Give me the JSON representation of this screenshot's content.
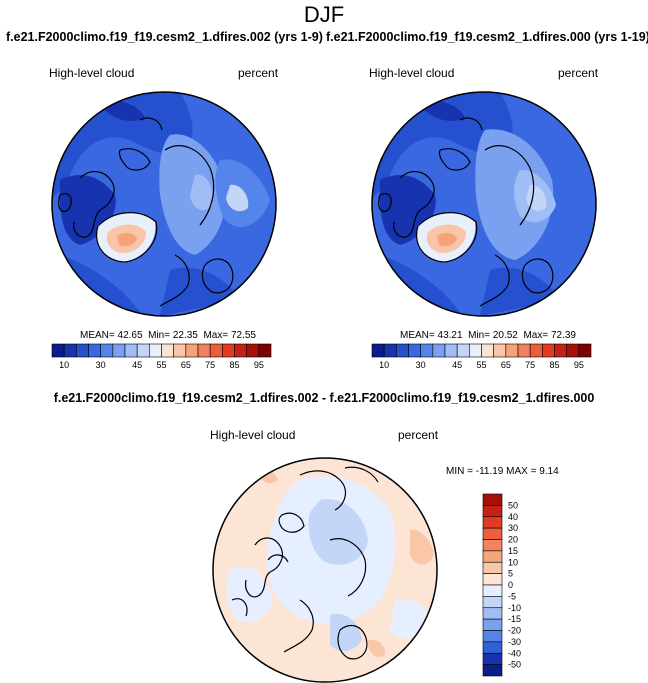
{
  "chart_data": [
    {
      "type": "heatmap",
      "projection": "north-polar-stereographic",
      "title": "DJF",
      "subtitle": "f.e21.F2000climo.f19_f19.cesm2_1.dfires.002 (yrs 1-9)",
      "left_label": "High-level cloud",
      "right_label": "percent",
      "stats": {
        "mean_label": "MEAN=",
        "mean": "42.65",
        "min_label": "Min=",
        "min": "22.35",
        "max_label": "Max=",
        "max": "72.55"
      },
      "colorbar": {
        "orientation": "horizontal",
        "levels": [
          10,
          20,
          25,
          30,
          35,
          40,
          45,
          50,
          55,
          60,
          65,
          70,
          75,
          80,
          85,
          90,
          95
        ],
        "tick_labels": [
          "10",
          "30",
          "45",
          "55",
          "65",
          "75",
          "85",
          "95"
        ],
        "colors": [
          "#0b1c8c",
          "#1833b0",
          "#2550d0",
          "#3a68e0",
          "#5584ea",
          "#7aa0f0",
          "#a0bdf5",
          "#c4d6f8",
          "#e8f0fc",
          "#fbe4d4",
          "#f8c6a6",
          "#f6a37c",
          "#f3805a",
          "#ed5d3c",
          "#e03c25",
          "#c82114",
          "#a70f0b",
          "#7e0000"
        ]
      }
    },
    {
      "type": "heatmap",
      "projection": "north-polar-stereographic",
      "subtitle": "f.e21.F2000climo.f19_f19.cesm2_1.dfires.000 (yrs 1-19)",
      "left_label": "High-level cloud",
      "right_label": "percent",
      "stats": {
        "mean_label": "MEAN=",
        "mean": "43.21",
        "min_label": "Min=",
        "min": "20.52",
        "max_label": "Max=",
        "max": "72.39"
      },
      "colorbar": {
        "orientation": "horizontal",
        "levels": [
          10,
          20,
          25,
          30,
          35,
          40,
          45,
          50,
          55,
          60,
          65,
          70,
          75,
          80,
          85,
          90,
          95
        ],
        "tick_labels": [
          "10",
          "30",
          "45",
          "55",
          "65",
          "75",
          "85",
          "95"
        ],
        "colors": [
          "#0b1c8c",
          "#1833b0",
          "#2550d0",
          "#3a68e0",
          "#5584ea",
          "#7aa0f0",
          "#a0bdf5",
          "#c4d6f8",
          "#e8f0fc",
          "#fbe4d4",
          "#f8c6a6",
          "#f6a37c",
          "#f3805a",
          "#ed5d3c",
          "#e03c25",
          "#c82114",
          "#a70f0b",
          "#7e0000"
        ]
      }
    },
    {
      "type": "heatmap",
      "projection": "north-polar-stereographic",
      "title": "f.e21.F2000climo.f19_f19.cesm2_1.dfires.002 - f.e21.F2000climo.f19_f19.cesm2_1.dfires.000",
      "left_label": "High-level cloud",
      "right_label": "percent",
      "stats": {
        "min_label": "MIN =",
        "min": "-11.19",
        "max_label": "MAX =",
        "max": "9.14"
      },
      "colorbar": {
        "orientation": "vertical",
        "levels": [
          -50,
          -40,
          -30,
          -20,
          -15,
          -10,
          -5,
          0,
          5,
          10,
          15,
          20,
          30,
          40,
          50
        ],
        "tick_labels_top_to_bottom": [
          "50",
          "40",
          "30",
          "20",
          "15",
          "10",
          "5",
          "0",
          "-5",
          "-10",
          "-15",
          "-20",
          "-30",
          "-40",
          "-50"
        ],
        "colors_top_to_bottom": [
          "#a70f0b",
          "#c82114",
          "#e03c25",
          "#ee5e3d",
          "#f3835c",
          "#f6a67f",
          "#f9c7a8",
          "#fce5d5",
          "#e6efff",
          "#c4d6f8",
          "#a0bdf5",
          "#7aa0f0",
          "#5584ea",
          "#3060d8",
          "#1833b0",
          "#0b1c8c"
        ]
      }
    }
  ]
}
